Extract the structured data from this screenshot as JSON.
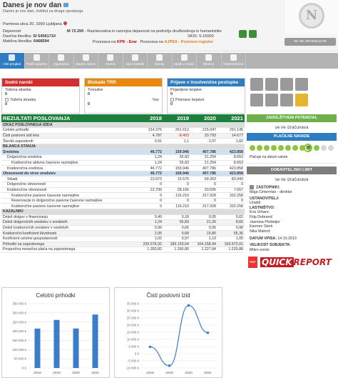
{
  "header": {
    "company_name": "Danes je nov dan",
    "company_sub": "Danes je nov dan, Inštitut za druga vprašanja",
    "address": "Parmova ulica 20, 1000 Ljubljana",
    "activity_label": "Dejavnost:",
    "activity_code": "M 72.200",
    "activity_text": "- Raziskovalna in razvojna dejavnost na področju družboslovja in humanistike",
    "tax_label": "Davčna številka:",
    "tax_value": "SI 54561710",
    "reg_label": "Matična številka:",
    "reg_value": "6468594",
    "skis": "SKIS: S.15000",
    "link_label": "Povezava na",
    "link_kpk": "KPK - Erar",
    "link_ajpes": "AJPES - Poslovni register",
    "login_label": "SE NE SPOMINJATE",
    "logo_letter": "N"
  },
  "nav": {
    "items": [
      {
        "label": "Hitri pregled"
      },
      {
        "label": "Profil subjekta"
      },
      {
        "label": "Zgodovina"
      },
      {
        "label": "Bančni računi"
      },
      {
        "label": "Ocena"
      },
      {
        "label": "Javni lastniki"
      },
      {
        "label": "Naroki"
      },
      {
        "label": "Upnik v insolv."
      },
      {
        "label": "Bilanca"
      },
      {
        "label": "Nepremičnine"
      }
    ]
  },
  "panels": {
    "sodni": {
      "title": "Sodni naroki",
      "tozena_label": "Tožena stranka",
      "tozena_value": "0",
      "tozeca_label": "Tožeča stranka",
      "tozeca_value": "0"
    },
    "blokade": {
      "title": "Blokade TRR",
      "trenutne_label": "Trenutne",
      "trenutne_value": "0",
      "vse_label": "Vse",
      "vse_value": "0"
    },
    "insolv": {
      "title": "Prijave v insolvenčne postopke",
      "prijavljene_label": "Prijavljene terjatve",
      "prijavljene_value": "0",
      "priznane_label": "Priznane terjatve",
      "priznane_value": "0"
    }
  },
  "table": {
    "title": "REZULTATI POSLOVANJA",
    "years": [
      "2018",
      "2019",
      "2020",
      "2021"
    ],
    "rows": [
      {
        "kind": "sec",
        "label": "IZKAZ POSLOVNEGA IZIDA",
        "v": [
          "",
          "",
          "",
          ""
        ]
      },
      {
        "kind": "",
        "label": "Celotni prihodki",
        "v": [
          "214.375",
          "261.612",
          "215.047",
          "291.145"
        ]
      },
      {
        "kind": "alt",
        "label": "Čisti poslovni izid leta",
        "v": [
          "4.787",
          "-8.403",
          "33.793",
          "14.677"
        ]
      },
      {
        "kind": "",
        "label": "Število zaposlenih",
        "v": [
          "0,91",
          "1,1",
          "2,07",
          "1,82"
        ]
      },
      {
        "kind": "sec",
        "label": "BILANCA STANJA",
        "v": [
          "",
          "",
          "",
          ""
        ]
      },
      {
        "kind": "blu",
        "label": "Sredstva",
        "v": [
          "46.772",
          "159.946",
          "407.786",
          "423.858"
        ]
      },
      {
        "kind": "ind1",
        "label": "Dolgoročna sredstva",
        "v": [
          "1,24",
          "55.83",
          "21.254",
          "8.653"
        ]
      },
      {
        "kind": "ind2",
        "label": "Kratkoročne aktivne časovne razmejitve",
        "v": [
          "1,24",
          "55.83",
          "21.254",
          "8.653"
        ]
      },
      {
        "kind": "ind1",
        "label": "Kratkoročna sredstva",
        "v": [
          "46.772",
          "159.946",
          "407.786",
          "423.858"
        ]
      },
      {
        "kind": "blu",
        "label": "Obveznosti do virov sredstev",
        "v": [
          "46.772",
          "159.946",
          "407.786",
          "423.858"
        ]
      },
      {
        "kind": "ind1",
        "label": "Skladi",
        "v": [
          "23.973",
          "15.570",
          "69.263",
          "83.943"
        ]
      },
      {
        "kind": "ind1",
        "label": "Dolgoročne obveznosti",
        "v": [
          "0",
          "0",
          "0",
          "0"
        ]
      },
      {
        "kind": "ind1",
        "label": "Kratkoročne obveznosti",
        "v": [
          "22.799",
          "28.166",
          "20.595",
          "7.657"
        ]
      },
      {
        "kind": "ind2",
        "label": "Kratkoročne pasivne časovne razmejitve",
        "v": [
          "0",
          "116.210",
          "317.928",
          "332.258"
        ]
      },
      {
        "kind": "ind2",
        "label": "Rezervacije in dolgoročne pasivne časovne razmejitve",
        "v": [
          "0",
          "0",
          "0",
          "0"
        ]
      },
      {
        "kind": "ind2",
        "label": "Kratkoročne pasivne časovne razmejitve",
        "v": [
          "0",
          "116.210",
          "317.928",
          "332.258"
        ]
      },
      {
        "kind": "sec",
        "label": "KAZALNIKI",
        "v": [
          "",
          "",
          "",
          ""
        ]
      },
      {
        "kind": "",
        "label": "Delež dolgov v financiranju",
        "v": [
          "0,49",
          "0,18",
          "0,05",
          "0,02"
        ]
      },
      {
        "kind": "alt",
        "label": "Delež dolgoročnih sredstev v sredstvih",
        "v": [
          "1,24",
          "55,83",
          "21,25",
          "8,65"
        ]
      },
      {
        "kind": "",
        "label": "Delež kratkoročnih sredstev v sredstvih",
        "v": [
          "0,99",
          "0,65",
          "0,95",
          "0,98"
        ]
      },
      {
        "kind": "alt",
        "label": "Kratkoročni koeficient likvidnosti",
        "v": [
          "2,05",
          "5,68",
          "19,80",
          "55,36"
        ]
      },
      {
        "kind": "",
        "label": "Koeficient celotne gospodarnosti",
        "v": [
          "1,02",
          "0,97",
          "1,19",
          "1,05"
        ]
      },
      {
        "kind": "alt",
        "label": "Prihodki na zaposlenega",
        "v": [
          "235.576,92",
          "183.153,64",
          "104.158,94",
          "159.972,01"
        ]
      },
      {
        "kind": "",
        "label": "Povprečna mesečna plača na zaposlenega",
        "v": [
          "1.350,82",
          "1.266,80",
          "1.227,84",
          "1.229,88"
        ]
      }
    ],
    "footnote": "Podatki so prikazani v 1 EUR"
  },
  "side": {
    "potencial_title": "ZADOLŽITVENI POTENCIAL",
    "potencial_value": "se ne izračunava",
    "navade_title": "PLAČILNE NAVADE",
    "navade_num": "10",
    "navade_dots_on": 10,
    "navade_dots_total": 12,
    "navade_note": "Plačuje na datum valute",
    "limit_title": "DOBAVITELJSKI LIMIT",
    "limit_value": "se ne izračunava",
    "zastopniki_label": "ZASTOPNIKI:",
    "zastopniki_value": "Maja Cimerman - direktor",
    "ustan_label": "USTANOVITELJ:",
    "ustan_value": "Uradiš",
    "lastniki_label": "LASTNIŠTVO:",
    "lastniki": [
      "Eva Urbanc",
      "Filip Dobranić",
      "Jasmina Plošteljer",
      "Karmen Sterk",
      "Nika Mahnič"
    ],
    "vpis_label": "DATUM VPISA:",
    "vpis_value": "14.10.2013",
    "velikost_label": "VELIKOST SUBJEKTA:",
    "velikost_value": "Mikro enote",
    "pdf_label": "PDF",
    "qr_a": "QUICK",
    "qr_b": "REPORT"
  },
  "chart_data": [
    {
      "type": "bar",
      "title": "Celotni prihodki",
      "categories": [
        "2018",
        "2019",
        "2020",
        "2021"
      ],
      "values": [
        214375,
        261612,
        215047,
        291145
      ],
      "ylim": [
        0,
        350000
      ],
      "yticks": [
        "0 €",
        "50 000 €",
        "100 000 €",
        "150 000 €",
        "200 000 €",
        "250 000 €",
        "300 000 €",
        "350 000 €"
      ],
      "color": "#3a7dc9",
      "grid": true
    },
    {
      "type": "line",
      "title": "Čisti poslovni izid",
      "categories": [
        "2018",
        "2019",
        "2020",
        "2021"
      ],
      "values": [
        4787,
        -8403,
        33793,
        14677
      ],
      "ylim": [
        -10000,
        35000
      ],
      "yticks": [
        "-10 000 €",
        "-5 000 €",
        "0 €",
        "5 000 €",
        "10 000 €",
        "15 000 €",
        "20 000 €",
        "25 000 €",
        "30 000 €",
        "35 000 €"
      ],
      "color": "#3a7dc9",
      "grid": true
    }
  ],
  "colors": {
    "nav_active": "#2e7cc1",
    "table_head": "#1d7f3d",
    "panel_sodni": "#d12e2e",
    "panel_blokade": "#e8880e",
    "panel_insolv": "#2e7cc1",
    "side_green": "#6fb04c"
  }
}
